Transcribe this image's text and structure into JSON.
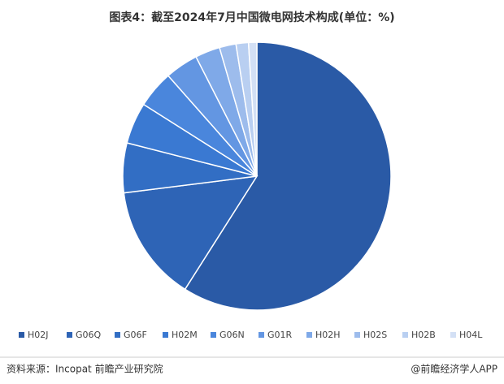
{
  "chart_data": {
    "type": "pie",
    "title": "图表4：截至2024年7月中国微电网技术构成(单位：%)",
    "categories": [
      "H02J",
      "G06Q",
      "G06F",
      "H02M",
      "G06N",
      "G01R",
      "H02H",
      "H02S",
      "H02B",
      "H04L"
    ],
    "values": [
      59,
      14,
      6,
      5,
      4.5,
      4,
      3,
      2,
      1.5,
      1
    ],
    "colors": [
      "#2a5aa6",
      "#2e64b6",
      "#326ec4",
      "#3a79d2",
      "#4a86dc",
      "#6396e2",
      "#7fa9e8",
      "#9dbcec",
      "#b9cff1",
      "#d3e0f5"
    ],
    "legend": "bottom"
  },
  "footer": {
    "source": "资料来源：Incopat 前瞻产业研究院",
    "brand": "@前瞻经济学人APP"
  }
}
